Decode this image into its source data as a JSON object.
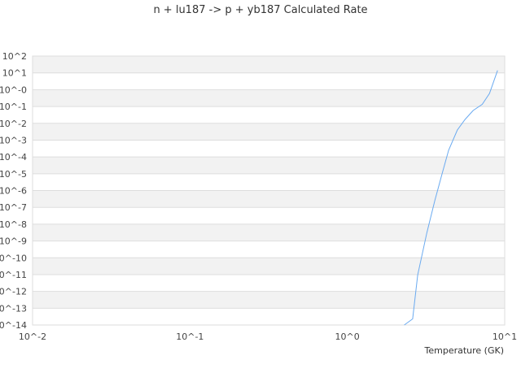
{
  "chart_data": {
    "type": "line",
    "title": "n + lu187 -> p + yb187 Calculated Rate",
    "xlabel": "Temperature (GK)",
    "ylabel": "",
    "xscale": "log",
    "yscale": "log",
    "xlim": [
      0.01,
      10
    ],
    "ylim": [
      1e-14,
      100
    ],
    "x_ticks": [
      "10^-2",
      "10^-1",
      "10^0",
      "10^1"
    ],
    "y_ticks": [
      "10^2",
      "10^1",
      "10^-0",
      "10^-1",
      "10^-2",
      "10^-3",
      "10^-4",
      "10^-5",
      "10^-6",
      "10^-7",
      "10^-8",
      "10^-9",
      "10^-10",
      "10^-11",
      "10^-12",
      "10^-13",
      "10^-14"
    ],
    "grid": true,
    "banded_background": true,
    "colors": {
      "line": "#6aaaf0",
      "band": "#f2f2f2",
      "grid": "#dddddd"
    },
    "series": [
      {
        "x": [
          2.3,
          2.6,
          2.8,
          3.2,
          3.6,
          4.0,
          4.4,
          5.0,
          5.6,
          6.3,
          7.2,
          8.0,
          9.0
        ],
        "y": [
          1e-14,
          2.3e-14,
          9.5e-12,
          3e-09,
          2.6e-07,
          1e-05,
          0.00025,
          0.004,
          0.017,
          0.058,
          0.135,
          0.6,
          14
        ]
      }
    ]
  }
}
